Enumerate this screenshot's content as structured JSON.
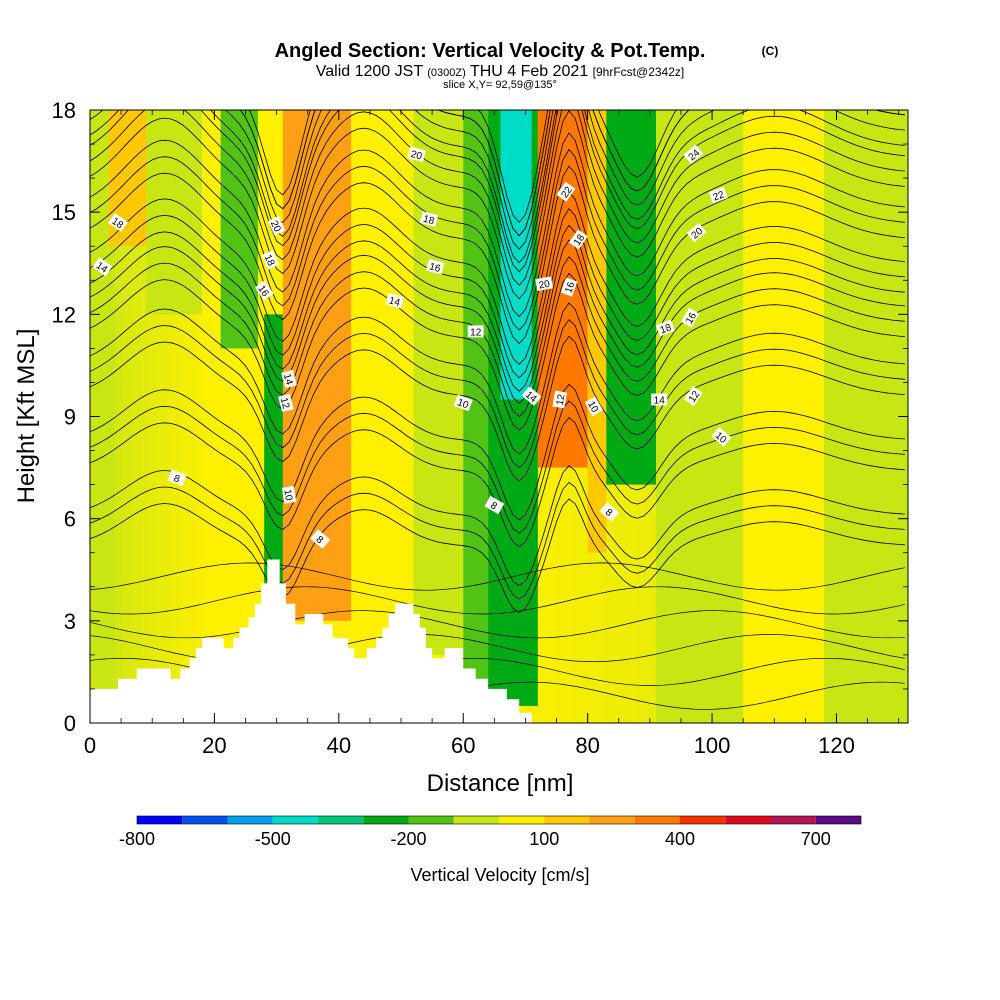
{
  "chart_data": {
    "type": "heatmap",
    "title": "Angled Section: Vertical Velocity & Pot.Temp.",
    "title_mark": "(C)",
    "subtitle_parts": [
      "Valid 1200 JST",
      "(0300Z)",
      "THU 4 Feb 2021",
      "[9hrFcst@2342z]"
    ],
    "slice_text": "slice X,Y= 92,59@135°",
    "xlabel": "Distance [nm]",
    "ylabel": "Height [Kft MSL]",
    "xlim": [
      0,
      131.5
    ],
    "ylim": [
      0,
      18
    ],
    "x_ticks": [
      "0",
      "20",
      "40",
      "60",
      "80",
      "100",
      "120"
    ],
    "y_ticks": [
      "0",
      "3",
      "6",
      "9",
      "12",
      "15",
      "18"
    ],
    "colorbar": {
      "label": "Vertical Velocity [cm/s]",
      "tick_labels": [
        "-800",
        "-500",
        "-200",
        "100",
        "400",
        "700"
      ],
      "colors": [
        "#0000ff",
        "#0050f0",
        "#00a0f0",
        "#00dcc8",
        "#00c878",
        "#00aa14",
        "#50c314",
        "#c8e614",
        "#fff000",
        "#ffc800",
        "#ffa014",
        "#ff7800",
        "#f53200",
        "#dc0a1e",
        "#b41450",
        "#5a0a82"
      ]
    },
    "terrain_profile": [
      [
        0,
        1.0
      ],
      [
        4.5,
        1.0
      ],
      [
        4.5,
        1.3
      ],
      [
        7.5,
        1.3
      ],
      [
        7.5,
        1.6
      ],
      [
        13,
        1.6
      ],
      [
        13,
        1.3
      ],
      [
        14.5,
        1.3
      ],
      [
        14.5,
        1.6
      ],
      [
        16,
        1.6
      ],
      [
        16,
        1.9
      ],
      [
        17,
        1.9
      ],
      [
        17,
        2.2
      ],
      [
        18,
        2.2
      ],
      [
        18,
        2.5
      ],
      [
        21.5,
        2.5
      ],
      [
        21.5,
        2.2
      ],
      [
        23,
        2.2
      ],
      [
        23,
        2.5
      ],
      [
        24,
        2.5
      ],
      [
        24,
        2.8
      ],
      [
        25.5,
        2.8
      ],
      [
        25.5,
        3.1
      ],
      [
        26.5,
        3.1
      ],
      [
        26.5,
        3.5
      ],
      [
        27.5,
        3.5
      ],
      [
        27.5,
        4.1
      ],
      [
        28.5,
        4.1
      ],
      [
        28.5,
        4.8
      ],
      [
        30.5,
        4.8
      ],
      [
        30.5,
        4.1
      ],
      [
        31.5,
        4.1
      ],
      [
        31.5,
        3.5
      ],
      [
        33,
        3.5
      ],
      [
        33,
        2.9
      ],
      [
        34.5,
        2.9
      ],
      [
        34.5,
        3.2
      ],
      [
        37.5,
        3.2
      ],
      [
        37.5,
        2.9
      ],
      [
        39,
        2.9
      ],
      [
        39,
        2.5
      ],
      [
        41.5,
        2.5
      ],
      [
        41.5,
        2.2
      ],
      [
        42.5,
        2.2
      ],
      [
        42.5,
        1.9
      ],
      [
        44.5,
        1.9
      ],
      [
        44.5,
        2.2
      ],
      [
        46,
        2.2
      ],
      [
        46,
        2.5
      ],
      [
        47,
        2.5
      ],
      [
        47,
        2.8
      ],
      [
        48,
        2.8
      ],
      [
        48,
        3.2
      ],
      [
        49,
        3.2
      ],
      [
        49,
        3.5
      ],
      [
        52,
        3.5
      ],
      [
        52,
        3.2
      ],
      [
        53,
        3.2
      ],
      [
        53,
        2.8
      ],
      [
        54,
        2.8
      ],
      [
        54,
        2.2
      ],
      [
        55,
        2.2
      ],
      [
        55,
        1.9
      ],
      [
        57,
        1.9
      ],
      [
        57,
        2.2
      ],
      [
        60,
        2.2
      ],
      [
        60,
        1.6
      ],
      [
        62,
        1.6
      ],
      [
        62,
        1.3
      ],
      [
        64,
        1.3
      ],
      [
        64,
        1.0
      ],
      [
        67,
        1.0
      ],
      [
        67,
        0.7
      ],
      [
        69,
        0.7
      ],
      [
        69,
        0.3
      ],
      [
        71,
        0.3
      ],
      [
        71,
        0.0
      ],
      [
        131.5,
        0.0
      ]
    ],
    "theta_contours": [
      {
        "label": "8",
        "base": 5.2
      },
      {
        "label": "10",
        "base": 7.4
      },
      {
        "label": "12",
        "base": 9.6
      },
      {
        "label": "14",
        "base": 11.3
      },
      {
        "label": "16",
        "base": 12.6
      },
      {
        "label": "18",
        "base": 14.2
      },
      {
        "label": "20",
        "base": 15.7
      },
      {
        "label": "22",
        "base": 16.9
      },
      {
        "label": "24",
        "base": 17.8
      }
    ],
    "contour_labels": [
      {
        "text": "8",
        "x": 14,
        "y": 7.2,
        "rot": 20
      },
      {
        "text": "14",
        "x": 2,
        "y": 13.4,
        "rot": 35
      },
      {
        "text": "18",
        "x": 4.5,
        "y": 14.7,
        "rot": 35
      },
      {
        "text": "20",
        "x": 30,
        "y": 14.6,
        "rot": 65
      },
      {
        "text": "18",
        "x": 29,
        "y": 13.6,
        "rot": 65
      },
      {
        "text": "16",
        "x": 28,
        "y": 12.7,
        "rot": 55
      },
      {
        "text": "14",
        "x": 32,
        "y": 10.1,
        "rot": 75
      },
      {
        "text": "12",
        "x": 31.5,
        "y": 9.4,
        "rot": 75
      },
      {
        "text": "10",
        "x": 32,
        "y": 6.7,
        "rot": 80
      },
      {
        "text": "8",
        "x": 37,
        "y": 5.4,
        "rot": 40
      },
      {
        "text": "20",
        "x": 52.5,
        "y": 16.7,
        "rot": 15
      },
      {
        "text": "18",
        "x": 54.5,
        "y": 14.8,
        "rot": 15
      },
      {
        "text": "16",
        "x": 55.5,
        "y": 13.4,
        "rot": 15
      },
      {
        "text": "14",
        "x": 49,
        "y": 12.4,
        "rot": 15
      },
      {
        "text": "12",
        "x": 62,
        "y": 11.5,
        "rot": 0
      },
      {
        "text": "10",
        "x": 60,
        "y": 9.4,
        "rot": 20
      },
      {
        "text": "8",
        "x": 65,
        "y": 6.4,
        "rot": 30
      },
      {
        "text": "22",
        "x": 76.5,
        "y": 15.6,
        "rot": -55
      },
      {
        "text": "18",
        "x": 78.5,
        "y": 14.2,
        "rot": -55
      },
      {
        "text": "20",
        "x": 73,
        "y": 12.9,
        "rot": -10
      },
      {
        "text": "16",
        "x": 77,
        "y": 12.8,
        "rot": -70
      },
      {
        "text": "14",
        "x": 71,
        "y": 9.6,
        "rot": 40
      },
      {
        "text": "12",
        "x": 75.5,
        "y": 9.5,
        "rot": -80
      },
      {
        "text": "10",
        "x": 81,
        "y": 9.3,
        "rot": 60
      },
      {
        "text": "8",
        "x": 83.5,
        "y": 6.2,
        "rot": 40
      },
      {
        "text": "24",
        "x": 97,
        "y": 16.7,
        "rot": -40
      },
      {
        "text": "22",
        "x": 101,
        "y": 15.5,
        "rot": -20
      },
      {
        "text": "20",
        "x": 97.5,
        "y": 14.4,
        "rot": -40
      },
      {
        "text": "18",
        "x": 92.5,
        "y": 11.6,
        "rot": -20
      },
      {
        "text": "16",
        "x": 96.5,
        "y": 11.9,
        "rot": -60
      },
      {
        "text": "14",
        "x": 91.5,
        "y": 9.5,
        "rot": 0
      },
      {
        "text": "12",
        "x": 97,
        "y": 9.6,
        "rot": -55
      },
      {
        "text": "10",
        "x": 101.5,
        "y": 8.4,
        "rot": 40
      }
    ],
    "velocity_bands": [
      {
        "x0": 0,
        "x1": 4,
        "color": "#c8e614",
        "top": 18,
        "bottom": 0
      },
      {
        "x0": 3,
        "x1": 9,
        "color": "#ffc800",
        "top": 18,
        "bottom": 14
      },
      {
        "x0": 9,
        "x1": 20,
        "color": "#c8e614",
        "top": 18,
        "bottom": 12
      },
      {
        "x0": 18,
        "x1": 24,
        "color": "#fff000",
        "top": 18,
        "bottom": 6
      },
      {
        "x0": 21,
        "x1": 27,
        "color": "#50c314",
        "top": 18,
        "bottom": 11
      },
      {
        "x0": 28,
        "x1": 33,
        "color": "#00aa14",
        "top": 12,
        "bottom": 4
      },
      {
        "x0": 31,
        "x1": 42,
        "color": "#ffa014",
        "top": 18,
        "bottom": 3
      },
      {
        "x0": 42,
        "x1": 52,
        "color": "#fff000",
        "top": 18,
        "bottom": 3
      },
      {
        "x0": 52,
        "x1": 60,
        "color": "#c8e614",
        "top": 18,
        "bottom": 2
      },
      {
        "x0": 60,
        "x1": 64,
        "color": "#50c314",
        "top": 18,
        "bottom": 1
      },
      {
        "x0": 64,
        "x1": 72,
        "color": "#00aa14",
        "top": 18,
        "bottom": 0.5
      },
      {
        "x0": 66,
        "x1": 71,
        "color": "#00dcc8",
        "top": 18,
        "bottom": 9.5
      },
      {
        "x0": 72,
        "x1": 80,
        "color": "#ff7800",
        "top": 18,
        "bottom": 7.5
      },
      {
        "x0": 80,
        "x1": 83,
        "color": "#ffc800",
        "top": 18,
        "bottom": 5
      },
      {
        "x0": 83,
        "x1": 91,
        "color": "#00aa14",
        "top": 18,
        "bottom": 7
      },
      {
        "x0": 91,
        "x1": 105,
        "color": "#c8e614",
        "top": 18,
        "bottom": 0
      },
      {
        "x0": 105,
        "x1": 118,
        "color": "#fff000",
        "top": 18,
        "bottom": 0
      },
      {
        "x0": 118,
        "x1": 131.5,
        "color": "#c8e614",
        "top": 18,
        "bottom": 0
      }
    ]
  }
}
